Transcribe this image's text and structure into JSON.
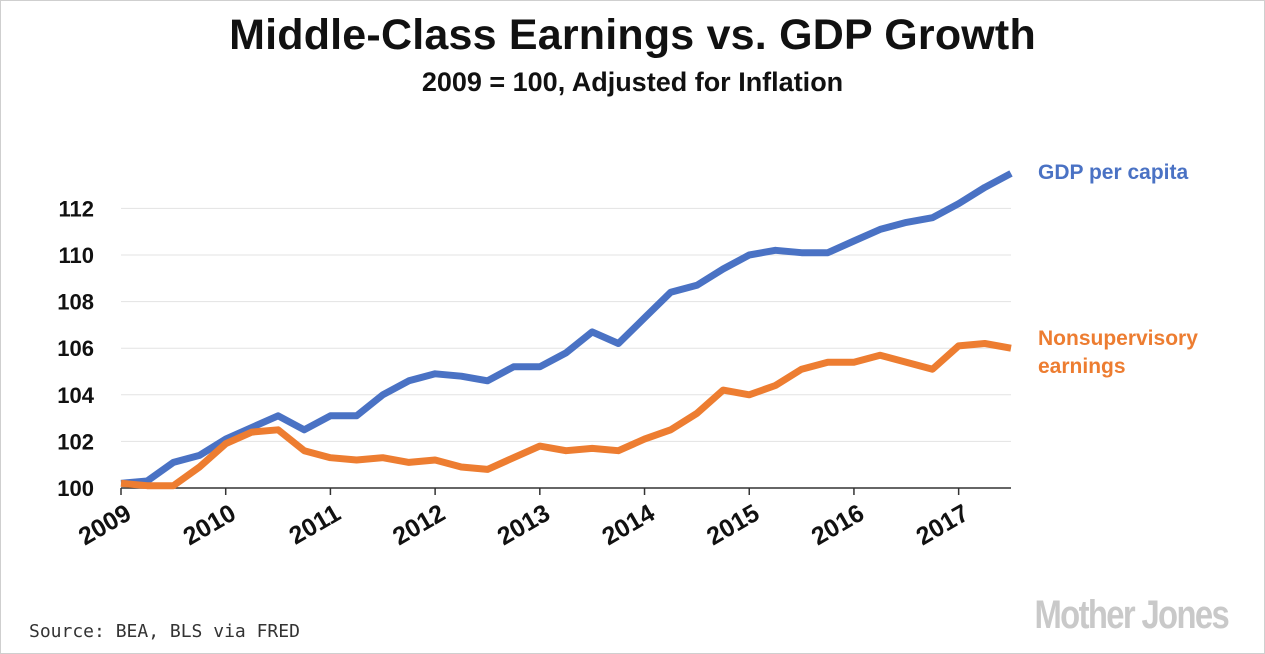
{
  "chart_data": {
    "type": "line",
    "title": "Middle-Class Earnings vs. GDP Growth",
    "subtitle": "2009 = 100, Adjusted for Inflation",
    "xlabel": "",
    "ylabel": "",
    "x_tick_labels": [
      "2009",
      "2010",
      "2011",
      "2012",
      "2013",
      "2014",
      "2015",
      "2016",
      "2017"
    ],
    "y_tick_labels": [
      "100",
      "102",
      "104",
      "106",
      "108",
      "110",
      "112"
    ],
    "y_ticks": [
      100,
      102,
      104,
      106,
      108,
      110,
      112
    ],
    "xlim": [
      2009,
      2017.5
    ],
    "ylim": [
      100,
      114
    ],
    "grid": "horizontal",
    "legend": "direct labels at right end of lines",
    "x": [
      2009.0,
      2009.25,
      2009.5,
      2009.75,
      2010.0,
      2010.25,
      2010.5,
      2010.75,
      2011.0,
      2011.25,
      2011.5,
      2011.75,
      2012.0,
      2012.25,
      2012.5,
      2012.75,
      2013.0,
      2013.25,
      2013.5,
      2013.75,
      2014.0,
      2014.25,
      2014.5,
      2014.75,
      2015.0,
      2015.25,
      2015.5,
      2015.75,
      2016.0,
      2016.25,
      2016.5,
      2016.75,
      2017.0,
      2017.25,
      2017.5
    ],
    "series": [
      {
        "name": "GDP per capita",
        "color": "#4a72c4",
        "values": [
          100.2,
          100.3,
          101.1,
          101.4,
          102.1,
          102.6,
          103.1,
          102.5,
          103.1,
          103.1,
          104.0,
          104.6,
          104.9,
          104.8,
          104.6,
          105.2,
          105.2,
          105.8,
          106.7,
          106.2,
          107.3,
          108.4,
          108.7,
          109.4,
          110.0,
          110.2,
          110.1,
          110.1,
          110.6,
          111.1,
          111.4,
          111.6,
          112.2,
          112.9,
          113.5
        ]
      },
      {
        "name": "Nonsupervisory earnings",
        "color": "#ed7d31",
        "values": [
          100.2,
          100.1,
          100.1,
          100.9,
          101.9,
          102.4,
          102.5,
          101.6,
          101.3,
          101.2,
          101.3,
          101.1,
          101.2,
          100.9,
          100.8,
          101.3,
          101.8,
          101.6,
          101.7,
          101.6,
          102.1,
          102.5,
          103.2,
          104.2,
          104.0,
          104.4,
          105.1,
          105.4,
          105.4,
          105.7,
          105.4,
          105.1,
          106.1,
          106.2,
          106.0
        ]
      }
    ],
    "series_labels": [
      {
        "lines": [
          "GDP per capita"
        ],
        "color": "#4a72c4"
      },
      {
        "lines": [
          "Nonsupervisory",
          "earnings"
        ],
        "color": "#ed7d31"
      }
    ]
  },
  "footer": {
    "source": "Source: BEA, BLS via FRED",
    "logo_text": "Mother Jones"
  }
}
